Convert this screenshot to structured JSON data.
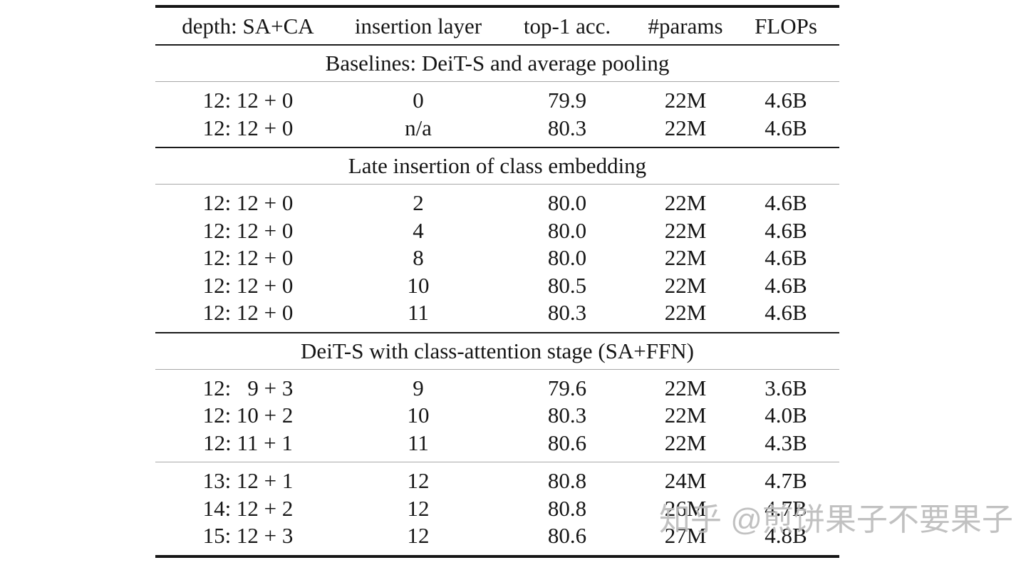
{
  "watermark": {
    "text": "知乎 @煎饼果子不要果子",
    "color": "#bcbcbc"
  },
  "table": {
    "columns": [
      "depth: SA+CA",
      "insertion layer",
      "top-1 acc.",
      "#params",
      "FLOPs"
    ],
    "sections": [
      {
        "title": "Baselines: DeiT-S and average pooling",
        "groups": [
          {
            "rows": [
              [
                "12: 12 + 0",
                "0",
                "79.9",
                "22M",
                "4.6B"
              ],
              [
                "12: 12 + 0",
                "n/a",
                "80.3",
                "22M",
                "4.6B"
              ]
            ]
          }
        ]
      },
      {
        "title": "Late insertion of class embedding",
        "groups": [
          {
            "rows": [
              [
                "12: 12 + 0",
                "2",
                "80.0",
                "22M",
                "4.6B"
              ],
              [
                "12: 12 + 0",
                "4",
                "80.0",
                "22M",
                "4.6B"
              ],
              [
                "12: 12 + 0",
                "8",
                "80.0",
                "22M",
                "4.6B"
              ],
              [
                "12: 12 + 0",
                "10",
                "80.5",
                "22M",
                "4.6B"
              ],
              [
                "12: 12 + 0",
                "11",
                "80.3",
                "22M",
                "4.6B"
              ]
            ]
          }
        ]
      },
      {
        "title": "DeiT-S with class-attention stage (SA+FFN)",
        "groups": [
          {
            "rows": [
              [
                "12:   9 + 3",
                "9",
                "79.6",
                "22M",
                "3.6B"
              ],
              [
                "12: 10 + 2",
                "10",
                "80.3",
                "22M",
                "4.0B"
              ],
              [
                "12: 11 + 1",
                "11",
                "80.6",
                "22M",
                "4.3B"
              ]
            ]
          },
          {
            "rows": [
              [
                "13: 12 + 1",
                "12",
                "80.8",
                "24M",
                "4.7B"
              ],
              [
                "14: 12 + 2",
                "12",
                "80.8",
                "26M",
                "4.7B"
              ],
              [
                "15: 12 + 3",
                "12",
                "80.6",
                "27M",
                "4.8B"
              ]
            ]
          }
        ]
      }
    ]
  }
}
